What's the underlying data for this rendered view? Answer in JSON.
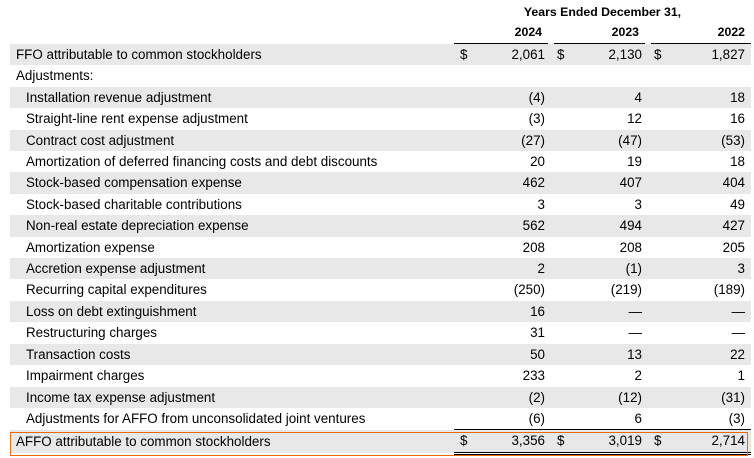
{
  "header": {
    "caption": "Years Ended December 31,",
    "years": [
      "2024",
      "2023",
      "2022"
    ]
  },
  "currency_symbol": "$",
  "ffo": {
    "label": "FFO attributable to common stockholders",
    "values": [
      "2,061",
      "2,130",
      "1,827"
    ]
  },
  "adjustments_heading": "Adjustments:",
  "rows": [
    {
      "label": "Installation revenue adjustment",
      "values": [
        "(4)",
        "4",
        "18"
      ]
    },
    {
      "label": "Straight-line rent expense adjustment",
      "values": [
        "(3)",
        "12",
        "16"
      ]
    },
    {
      "label": "Contract cost adjustment",
      "values": [
        "(27)",
        "(47)",
        "(53)"
      ]
    },
    {
      "label": "Amortization of deferred financing costs and debt discounts",
      "values": [
        "20",
        "19",
        "18"
      ]
    },
    {
      "label": "Stock-based compensation expense",
      "values": [
        "462",
        "407",
        "404"
      ]
    },
    {
      "label": "Stock-based charitable contributions",
      "values": [
        "3",
        "3",
        "49"
      ]
    },
    {
      "label": "Non-real estate depreciation expense",
      "values": [
        "562",
        "494",
        "427"
      ]
    },
    {
      "label": "Amortization expense",
      "values": [
        "208",
        "208",
        "205"
      ]
    },
    {
      "label": "Accretion expense adjustment",
      "values": [
        "2",
        "(1)",
        "3"
      ]
    },
    {
      "label": "Recurring capital expenditures",
      "values": [
        "(250)",
        "(219)",
        "(189)"
      ]
    },
    {
      "label": "Loss on debt extinguishment",
      "values": [
        "16",
        "—",
        "—"
      ]
    },
    {
      "label": "Restructuring charges",
      "values": [
        "31",
        "—",
        "—"
      ]
    },
    {
      "label": "Transaction costs",
      "values": [
        "50",
        "13",
        "22"
      ]
    },
    {
      "label": "Impairment charges",
      "values": [
        "233",
        "2",
        "1"
      ]
    },
    {
      "label": "Income tax expense adjustment",
      "values": [
        "(2)",
        "(12)",
        "(31)"
      ]
    },
    {
      "label": "Adjustments for AFFO from unconsolidated joint ventures",
      "values": [
        "(6)",
        "6",
        "(3)"
      ]
    }
  ],
  "affo": {
    "label": "AFFO attributable to common stockholders",
    "values": [
      "3,356",
      "3,019",
      "2,714"
    ]
  },
  "highlight_color": "#e36c09",
  "shade_color": "#e8e8e8"
}
